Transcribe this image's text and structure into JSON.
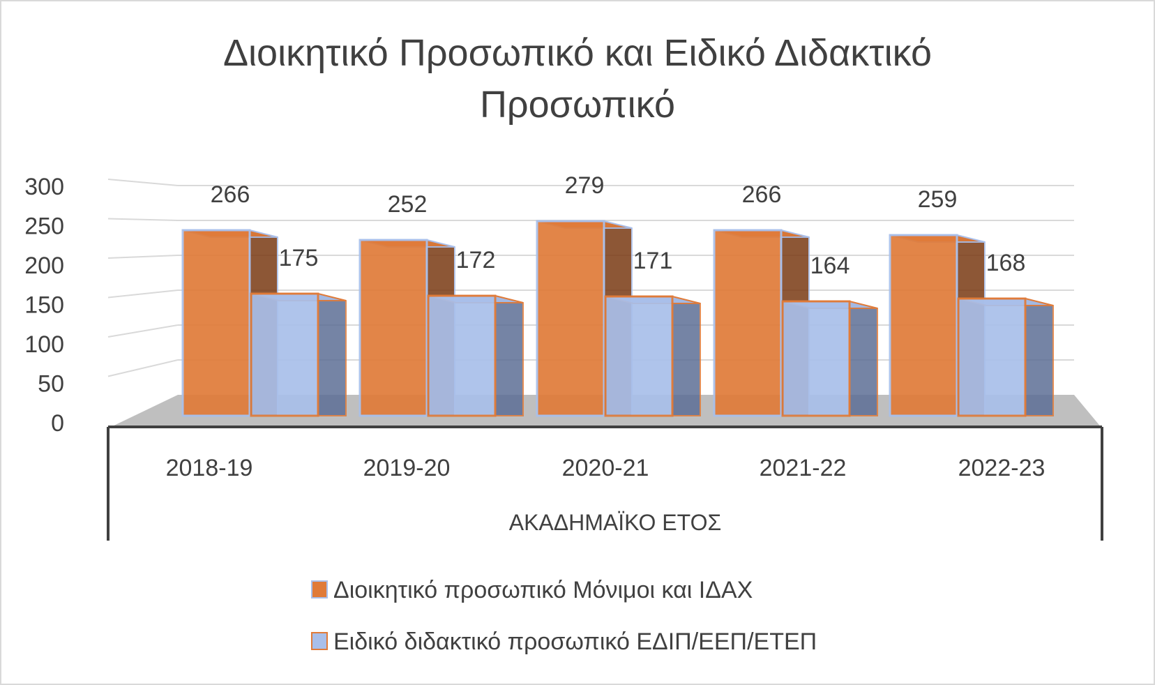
{
  "chart_data": {
    "type": "bar",
    "title_line1": "Διοικητικό Προσωπικό και Ειδικό Διδακτικό",
    "title_line2": "Προσωπικό",
    "xlabel": "ΑΚΑΔΗΜΑΪΚΟ ΕΤΟΣ",
    "ylabel": "",
    "ylim": [
      0,
      300
    ],
    "yticks": [
      "0",
      "50",
      "100",
      "150",
      "200",
      "250",
      "300"
    ],
    "categories": [
      "2018-19",
      "2019-20",
      "2020-21",
      "2021-22",
      "2022-23"
    ],
    "series": [
      {
        "name": "Διοικητικό προσωπικό Μόνιμοι και ΙΔΑΧ",
        "values": [
          266,
          252,
          279,
          266,
          259
        ],
        "labels": [
          "266",
          "252",
          "279",
          "266",
          "259"
        ],
        "color": "#E07B39"
      },
      {
        "name": "Ειδικό διδακτικό προσωπικό ΕΔΙΠ/ΕΕΠ/ΕΤΕΠ",
        "values": [
          175,
          172,
          171,
          164,
          168
        ],
        "labels": [
          "175",
          "172",
          "171",
          "164",
          "168"
        ],
        "color": "#A9BFEA"
      }
    ],
    "style": "3d-column",
    "grid": true,
    "legend_position": "bottom"
  }
}
